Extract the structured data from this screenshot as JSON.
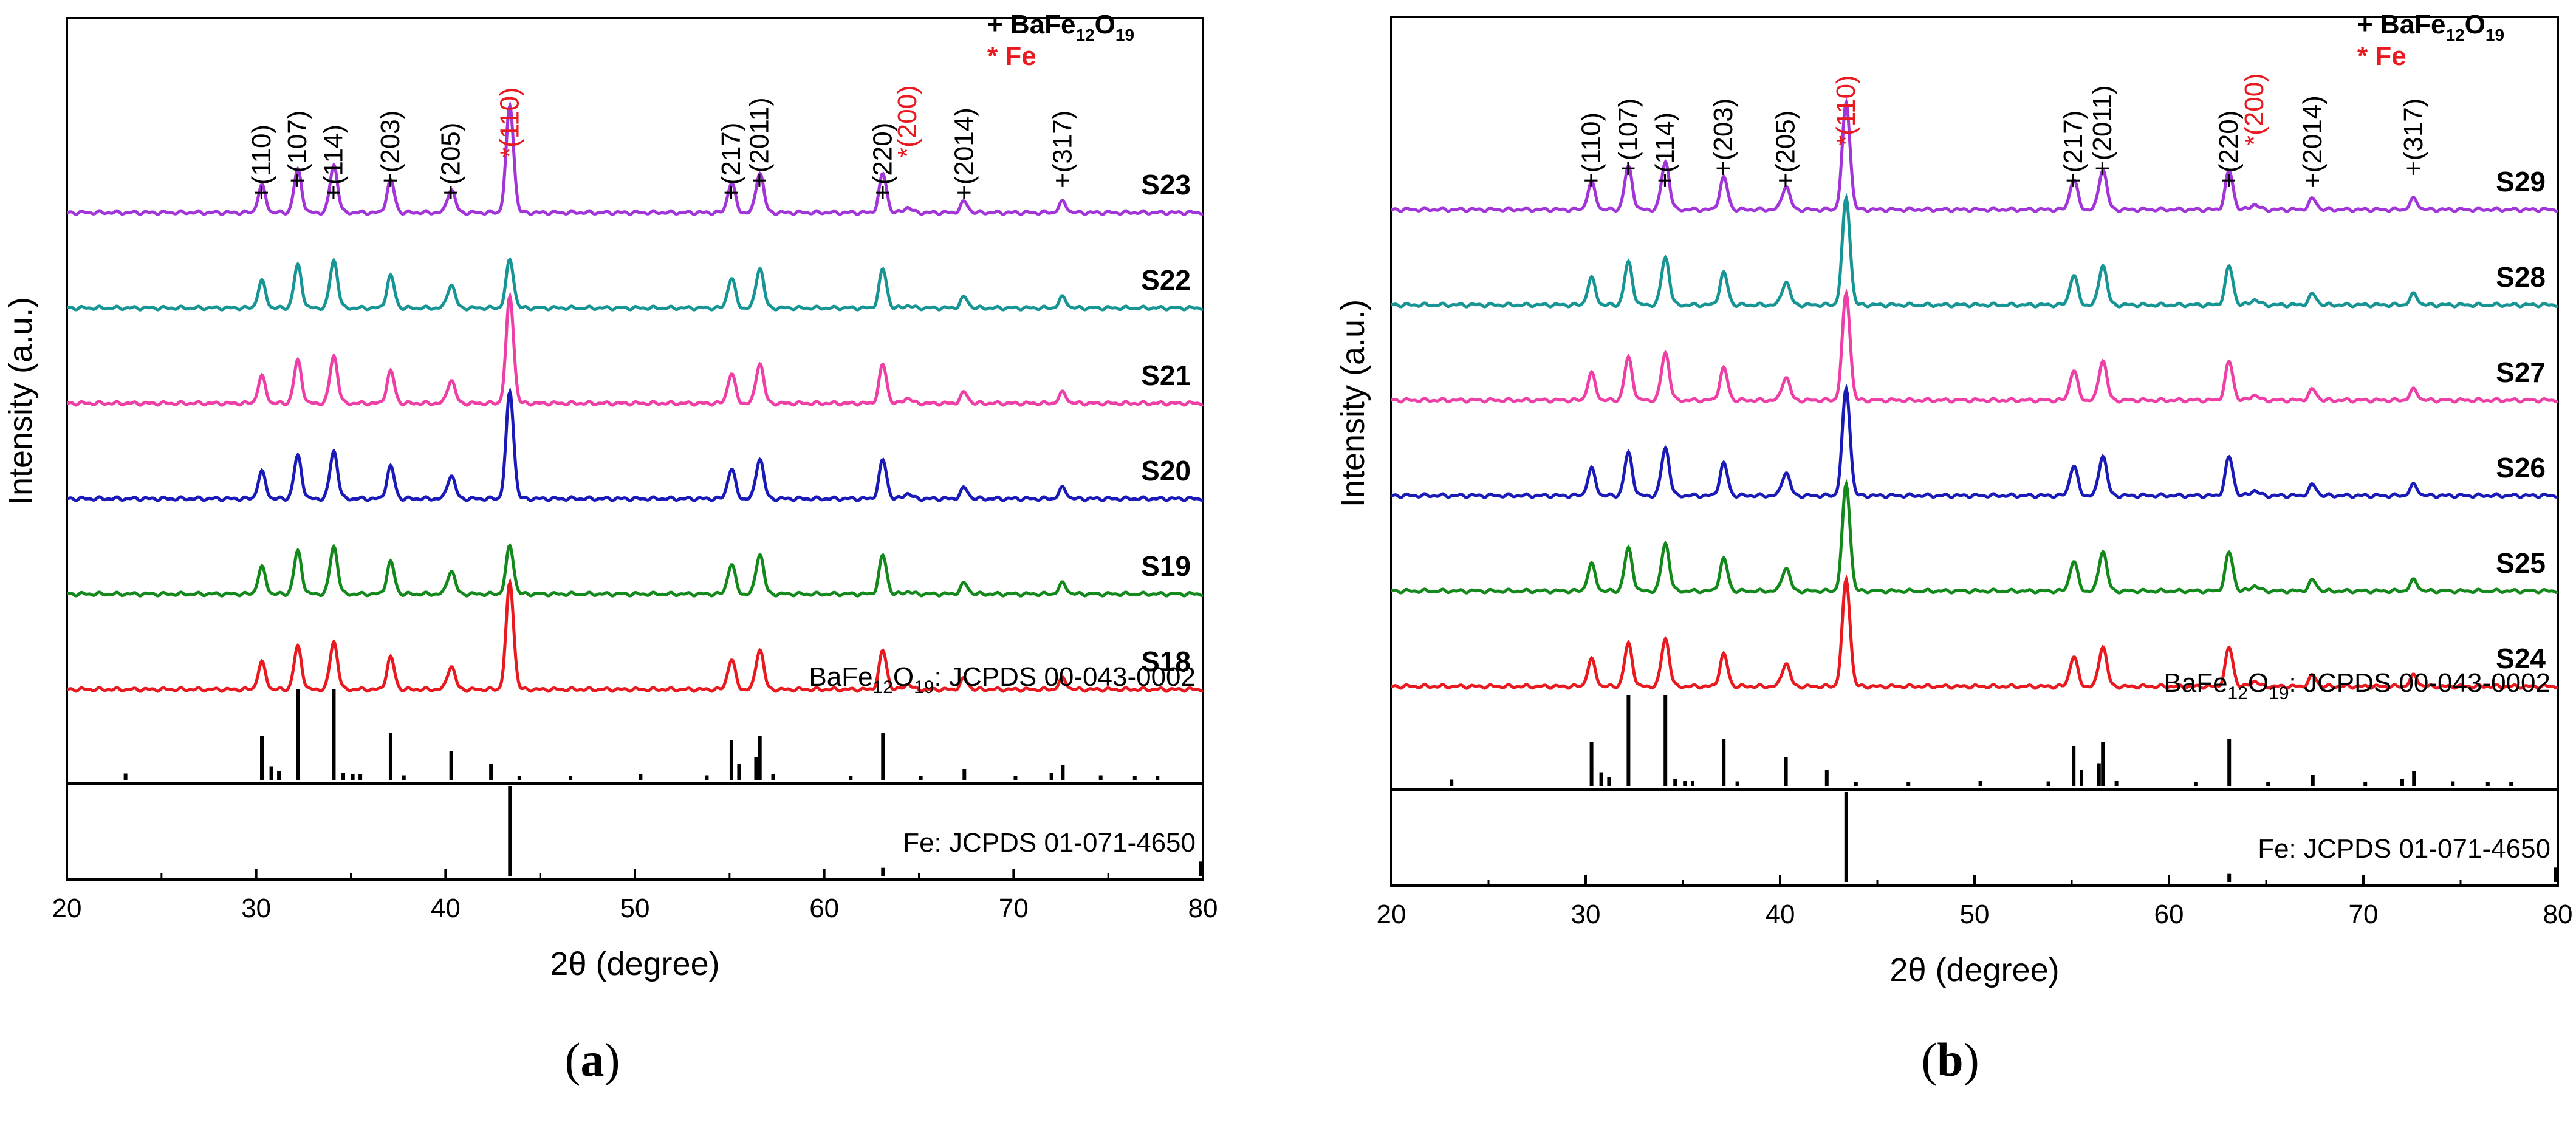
{
  "colors": {
    "S18": "#e8191f",
    "S19": "#12891a",
    "S20": "#1a1ab8",
    "S21": "#ee3fa6",
    "S22": "#179494",
    "S23": "#a235d8",
    "S24": "#e8191f",
    "S25": "#12891a",
    "S26": "#1a1ab8",
    "S27": "#ee3fa6",
    "S28": "#179494",
    "S29": "#a235d8",
    "axis": "#000000",
    "fe_label": "#e8191f",
    "plus_label": "#000000"
  },
  "chart_data": [
    {
      "panel": "a",
      "caption_open": "(",
      "caption_letter": "a",
      "caption_close": ")",
      "type": "line",
      "xlabel": "2θ (degree)",
      "ylabel": "Intensity (a.u.)",
      "xlim": [
        20,
        80
      ],
      "xticks": [
        20,
        30,
        40,
        50,
        60,
        70,
        80
      ],
      "legend": [
        {
          "marker": "+",
          "text": "BaFe",
          "sub": "12",
          "mid": "O",
          "sub2": "19"
        },
        {
          "marker": "*",
          "text": "Fe"
        }
      ],
      "series": [
        {
          "name": "S23",
          "order": 6,
          "sharp": true
        },
        {
          "name": "S22",
          "order": 5,
          "sharp": false
        },
        {
          "name": "S21",
          "order": 4,
          "sharp": true
        },
        {
          "name": "S20",
          "order": 3,
          "sharp": true
        },
        {
          "name": "S19",
          "order": 2,
          "sharp": false
        },
        {
          "name": "S18",
          "order": 1,
          "sharp": true
        }
      ],
      "reference_patterns": [
        {
          "label_pre": "BaFe",
          "label_sub": "12",
          "label_mid": "O",
          "label_sub2": "19",
          "label_post": ": JCPDS 00-043-0002"
        },
        {
          "label": "Fe: JCPDS 01-071-4650"
        }
      ]
    },
    {
      "panel": "b",
      "caption_open": "(",
      "caption_letter": "b",
      "caption_close": ")",
      "type": "line",
      "xlabel": "2θ (degree)",
      "ylabel": "Intensity (a.u.)",
      "xlim": [
        20,
        80
      ],
      "xticks": [
        20,
        30,
        40,
        50,
        60,
        70,
        80
      ],
      "legend": [
        {
          "marker": "+",
          "text": "BaFe",
          "sub": "12",
          "mid": "O",
          "sub2": "19"
        },
        {
          "marker": "*",
          "text": "Fe"
        }
      ],
      "series": [
        {
          "name": "S29",
          "order": 6,
          "sharp": true
        },
        {
          "name": "S28",
          "order": 5,
          "sharp": true
        },
        {
          "name": "S27",
          "order": 4,
          "sharp": true
        },
        {
          "name": "S26",
          "order": 3,
          "sharp": true
        },
        {
          "name": "S25",
          "order": 2,
          "sharp": true
        },
        {
          "name": "S24",
          "order": 1,
          "sharp": true
        }
      ],
      "reference_patterns": [
        {
          "label_pre": "BaFe",
          "label_sub": "12",
          "label_mid": "O",
          "label_sub2": "19",
          "label_post": ": JCPDS 00-043-0002"
        },
        {
          "label": "Fe: JCPDS 01-071-4650"
        }
      ]
    }
  ],
  "peak_labels": [
    {
      "marker": "+",
      "hkl": "(110)",
      "x": 30.3
    },
    {
      "marker": "+",
      "hkl": "(107)",
      "x": 32.2
    },
    {
      "marker": "+",
      "hkl": "(114)",
      "x": 34.1
    },
    {
      "marker": "+",
      "hkl": "(203)",
      "x": 37.1
    },
    {
      "marker": "+",
      "hkl": "(205)",
      "x": 40.3
    },
    {
      "marker": "*",
      "hkl": "(110)",
      "x": 43.4
    },
    {
      "marker": "+",
      "hkl": "(217)",
      "x": 55.1
    },
    {
      "marker": "+",
      "hkl": "(2011)",
      "x": 56.6
    },
    {
      "marker": "+",
      "hkl": "(220)",
      "x": 63.1
    },
    {
      "marker": "*",
      "hkl": "(200)",
      "x": 64.4
    },
    {
      "marker": "+",
      "hkl": "(2014)",
      "x": 67.4
    },
    {
      "marker": "+",
      "hkl": "(317)",
      "x": 72.6
    }
  ],
  "peaks": {
    "baferrite": [
      {
        "x": 30.3,
        "h": 0.25
      },
      {
        "x": 32.2,
        "h": 0.4
      },
      {
        "x": 34.1,
        "h": 0.45
      },
      {
        "x": 37.1,
        "h": 0.3
      },
      {
        "x": 40.3,
        "h": 0.22
      },
      {
        "x": 55.1,
        "h": 0.28
      },
      {
        "x": 56.6,
        "h": 0.38
      },
      {
        "x": 63.1,
        "h": 0.36
      },
      {
        "x": 67.4,
        "h": 0.1
      },
      {
        "x": 72.6,
        "h": 0.1
      }
    ],
    "fe": [
      {
        "x": 43.4,
        "h": 1.0
      },
      {
        "x": 64.4,
        "h": 0.05
      }
    ]
  },
  "ref_sticks": {
    "baferrite": [
      {
        "x": 23.1,
        "h": 0.07
      },
      {
        "x": 30.3,
        "h": 0.48
      },
      {
        "x": 30.8,
        "h": 0.15
      },
      {
        "x": 31.2,
        "h": 0.1
      },
      {
        "x": 32.2,
        "h": 1.0
      },
      {
        "x": 34.1,
        "h": 1.0
      },
      {
        "x": 34.6,
        "h": 0.08
      },
      {
        "x": 35.1,
        "h": 0.06
      },
      {
        "x": 35.5,
        "h": 0.06
      },
      {
        "x": 37.1,
        "h": 0.52
      },
      {
        "x": 37.8,
        "h": 0.05
      },
      {
        "x": 40.3,
        "h": 0.32
      },
      {
        "x": 42.4,
        "h": 0.18
      },
      {
        "x": 43.9,
        "h": 0.04
      },
      {
        "x": 46.6,
        "h": 0.04
      },
      {
        "x": 50.3,
        "h": 0.06
      },
      {
        "x": 53.8,
        "h": 0.05
      },
      {
        "x": 55.1,
        "h": 0.44
      },
      {
        "x": 55.5,
        "h": 0.18
      },
      {
        "x": 56.4,
        "h": 0.25
      },
      {
        "x": 56.6,
        "h": 0.48
      },
      {
        "x": 57.3,
        "h": 0.06
      },
      {
        "x": 61.4,
        "h": 0.04
      },
      {
        "x": 63.1,
        "h": 0.52
      },
      {
        "x": 65.1,
        "h": 0.04
      },
      {
        "x": 67.4,
        "h": 0.12
      },
      {
        "x": 70.1,
        "h": 0.04
      },
      {
        "x": 72.0,
        "h": 0.08
      },
      {
        "x": 72.6,
        "h": 0.16
      },
      {
        "x": 74.6,
        "h": 0.05
      },
      {
        "x": 76.4,
        "h": 0.04
      },
      {
        "x": 77.6,
        "h": 0.04
      }
    ],
    "fe": [
      {
        "x": 43.4,
        "h": 1.0
      },
      {
        "x": 63.1,
        "h": 0.09
      },
      {
        "x": 79.9,
        "h": 0.16
      }
    ]
  }
}
